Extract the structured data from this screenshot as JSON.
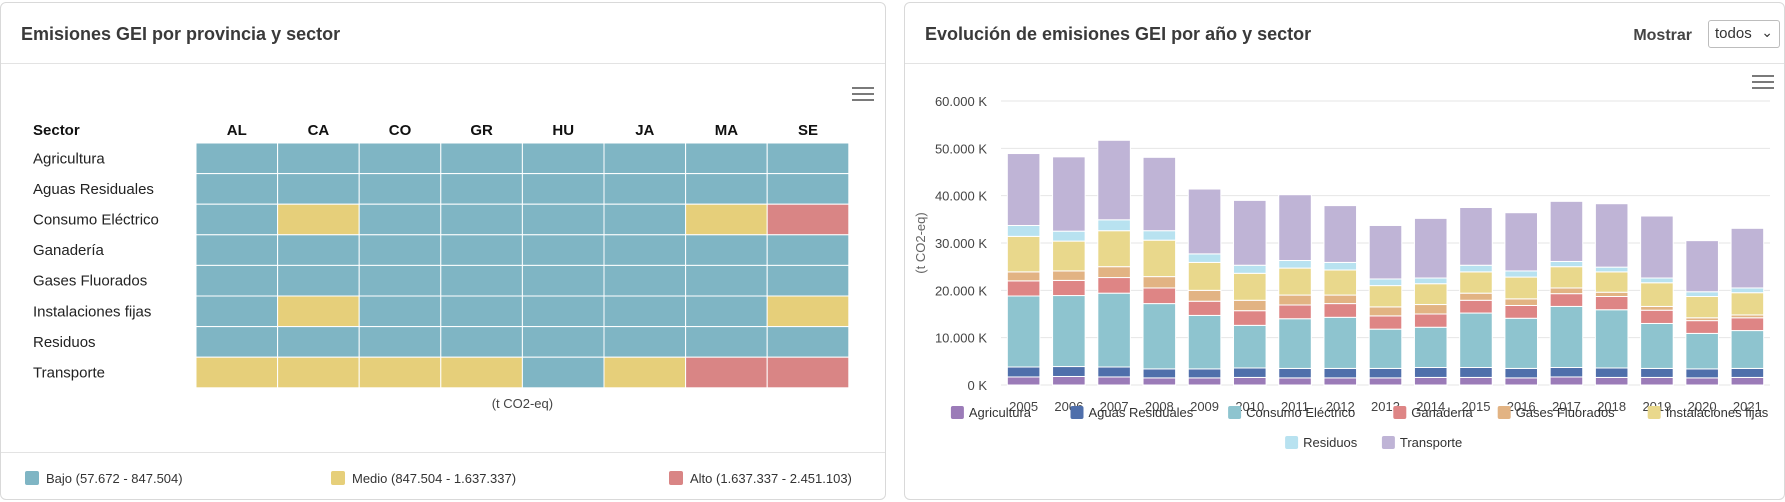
{
  "left_panel": {
    "title": "Emisiones GEI por provincia y sector",
    "legend": [
      {
        "label": "Bajo (57.672 - 847.504)",
        "color": "#7fb5c4"
      },
      {
        "label": "Medio (847.504 - 1.637.337)",
        "color": "#e6cf7a"
      },
      {
        "label": "Alto (1.637.337 - 2.451.103)",
        "color": "#d98585"
      }
    ]
  },
  "right_panel": {
    "title": "Evolución de emisiones GEI por año y sector",
    "show_label": "Mostrar",
    "show_select_value": "todos"
  },
  "chart_data": [
    {
      "type": "heatmap",
      "row_header": "Sector",
      "columns": [
        "AL",
        "CA",
        "CO",
        "GR",
        "HU",
        "JA",
        "MA",
        "SE"
      ],
      "rows": [
        "Agricultura",
        "Aguas Residuales",
        "Consumo Eléctrico",
        "Ganadería",
        "Gases Fluorados",
        "Instalaciones fijas",
        "Residuos",
        "Transporte"
      ],
      "levels": [
        [
          "Bajo",
          "Bajo",
          "Bajo",
          "Bajo",
          "Bajo",
          "Bajo",
          "Bajo",
          "Bajo"
        ],
        [
          "Bajo",
          "Bajo",
          "Bajo",
          "Bajo",
          "Bajo",
          "Bajo",
          "Bajo",
          "Bajo"
        ],
        [
          "Bajo",
          "Medio",
          "Bajo",
          "Bajo",
          "Bajo",
          "Bajo",
          "Medio",
          "Alto"
        ],
        [
          "Bajo",
          "Bajo",
          "Bajo",
          "Bajo",
          "Bajo",
          "Bajo",
          "Bajo",
          "Bajo"
        ],
        [
          "Bajo",
          "Bajo",
          "Bajo",
          "Bajo",
          "Bajo",
          "Bajo",
          "Bajo",
          "Bajo"
        ],
        [
          "Bajo",
          "Medio",
          "Bajo",
          "Bajo",
          "Bajo",
          "Bajo",
          "Bajo",
          "Medio"
        ],
        [
          "Bajo",
          "Bajo",
          "Bajo",
          "Bajo",
          "Bajo",
          "Bajo",
          "Bajo",
          "Bajo"
        ],
        [
          "Medio",
          "Medio",
          "Medio",
          "Medio",
          "Bajo",
          "Medio",
          "Alto",
          "Alto"
        ]
      ],
      "level_colors": {
        "Bajo": "#7fb5c4",
        "Medio": "#e6cf7a",
        "Alto": "#d98585"
      },
      "unit_label": "(t CO2-eq)"
    },
    {
      "type": "bar",
      "stacked": true,
      "categories": [
        "2005",
        "2006",
        "2007",
        "2008",
        "2009",
        "2010",
        "2011",
        "2012",
        "2013",
        "2014",
        "2015",
        "2016",
        "2017",
        "2018",
        "2019",
        "2020",
        "2021"
      ],
      "ylabel": "(t CO2-eq)",
      "ylim": [
        0,
        60000
      ],
      "yticks": [
        0,
        10000,
        20000,
        30000,
        40000,
        50000,
        60000
      ],
      "ytick_labels": [
        "0 K",
        "10.000 K",
        "20.000 K",
        "30.000 K",
        "40.000 K",
        "50.000 K",
        "60.000 K"
      ],
      "series": [
        {
          "name": "Agricultura",
          "color": "#9b7bb8",
          "values": [
            1700,
            1800,
            1700,
            1500,
            1500,
            1600,
            1500,
            1500,
            1500,
            1600,
            1600,
            1500,
            1700,
            1600,
            1600,
            1500,
            1600
          ]
        },
        {
          "name": "Aguas Residuales",
          "color": "#4f6fab",
          "values": [
            2100,
            2100,
            2100,
            1900,
            1900,
            2000,
            2000,
            2000,
            2000,
            2100,
            2100,
            2000,
            2000,
            2000,
            1900,
            1900,
            1900
          ]
        },
        {
          "name": "Consumo Eléctrico",
          "color": "#8ec4cf",
          "values": [
            15000,
            15000,
            15600,
            13800,
            11300,
            9000,
            10500,
            10800,
            8300,
            8500,
            11500,
            10600,
            12900,
            12300,
            9500,
            7500,
            8000
          ]
        },
        {
          "name": "Ganadería",
          "color": "#de8585",
          "values": [
            3200,
            3200,
            3300,
            3300,
            3000,
            3100,
            2900,
            2900,
            2800,
            2800,
            2700,
            2700,
            2700,
            2800,
            2800,
            2700,
            2700
          ]
        },
        {
          "name": "Gases Fluorados",
          "color": "#e2b383",
          "values": [
            1900,
            2000,
            2300,
            2400,
            2300,
            2200,
            2100,
            1800,
            1900,
            2000,
            1500,
            1400,
            1200,
            900,
            800,
            600,
            600
          ]
        },
        {
          "name": "Instalaciones fijas",
          "color": "#e9d88c",
          "values": [
            7500,
            6300,
            7600,
            7700,
            5900,
            5700,
            5700,
            5300,
            4500,
            4400,
            4500,
            4600,
            4500,
            4300,
            5000,
            4500,
            4700
          ]
        },
        {
          "name": "Residuos",
          "color": "#b8e2f0",
          "values": [
            2300,
            2100,
            2300,
            2000,
            1800,
            1700,
            1600,
            1600,
            1400,
            1200,
            1400,
            1300,
            1100,
            1000,
            1000,
            1000,
            1000
          ]
        },
        {
          "name": "Transporte",
          "color": "#bfb4d6",
          "values": [
            15200,
            15700,
            16800,
            15500,
            13700,
            13700,
            13900,
            12000,
            11300,
            12600,
            12200,
            12300,
            12700,
            13400,
            13100,
            10800,
            12600
          ]
        }
      ]
    }
  ]
}
